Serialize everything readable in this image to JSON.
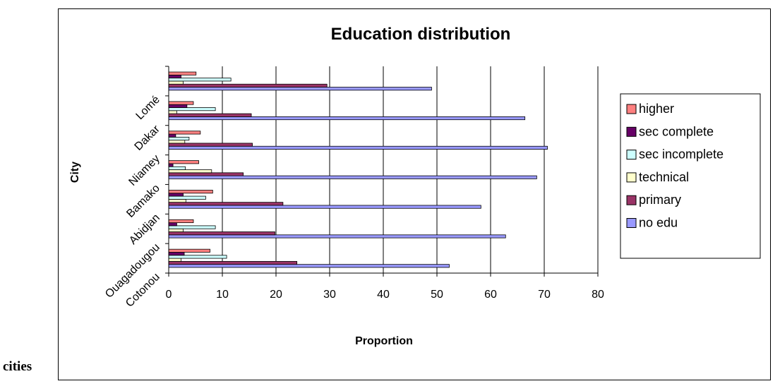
{
  "caption": "cities",
  "chart_data": {
    "type": "bar",
    "orientation": "horizontal",
    "title": "Education distribution",
    "xlabel": "Proportion",
    "ylabel": "City",
    "xlim": [
      0,
      80
    ],
    "x_ticks": [
      0,
      10,
      20,
      30,
      40,
      50,
      60,
      70,
      80
    ],
    "grid": "vertical",
    "legend_position": "right",
    "categories": [
      "Cotonou",
      "Ouagadougou",
      "Abidjan",
      "Bamako",
      "Niamey",
      "Dakar",
      "Lomé"
    ],
    "series": [
      {
        "name": "no edu",
        "color": "#9999ff",
        "values": [
          52.3,
          62.8,
          58.2,
          68.6,
          70.6,
          66.4,
          49.0
        ]
      },
      {
        "name": "primary",
        "color": "#993366",
        "values": [
          23.9,
          19.8,
          21.3,
          13.9,
          15.6,
          15.4,
          29.5
        ]
      },
      {
        "name": "technical",
        "color": "#ffffcc",
        "values": [
          2.3,
          2.7,
          3.2,
          8.0,
          3.0,
          1.5,
          2.7
        ]
      },
      {
        "name": "sec incomplete",
        "color": "#ccffff",
        "values": [
          10.8,
          8.7,
          6.9,
          3.1,
          3.8,
          8.7,
          11.6
        ]
      },
      {
        "name": "sec complete",
        "color": "#660066",
        "values": [
          2.9,
          1.5,
          2.7,
          0.8,
          1.3,
          3.4,
          2.3
        ]
      },
      {
        "name": "higher",
        "color": "#ff8080",
        "values": [
          7.7,
          4.6,
          8.2,
          5.6,
          5.9,
          4.6,
          5.1
        ]
      }
    ],
    "legend_order": [
      "higher",
      "sec complete",
      "sec incomplete",
      "technical",
      "primary",
      "no edu"
    ]
  }
}
